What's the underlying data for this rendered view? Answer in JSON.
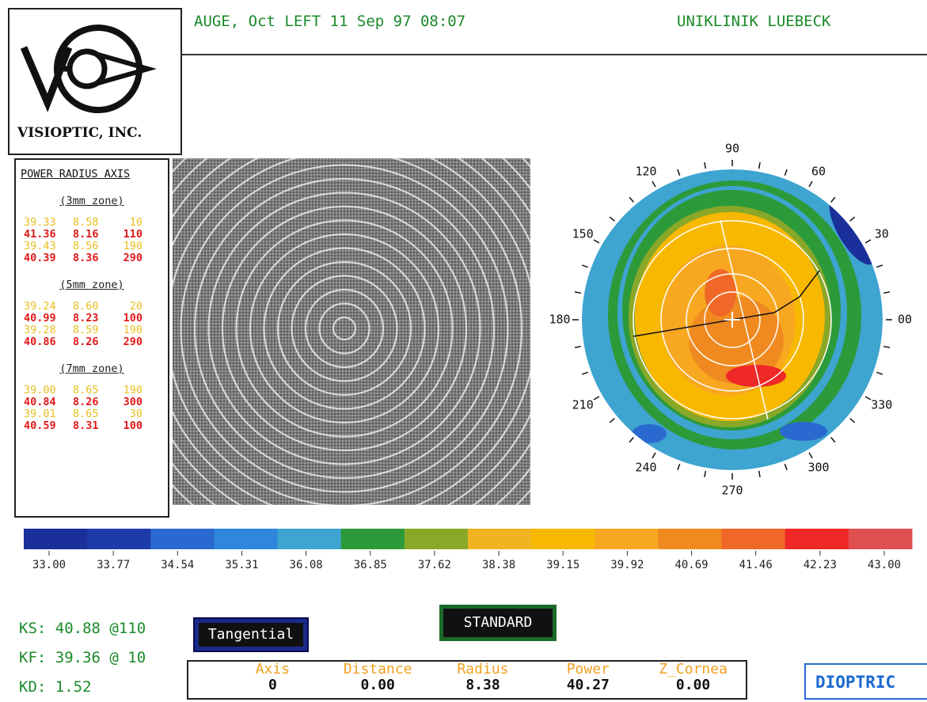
{
  "header": {
    "patient": "AUGE, Oct LEFT 11 Sep 97 08:07",
    "clinic": "UNIKLINIK LUEBECK"
  },
  "logo": {
    "company": "VISIOPTIC, INC."
  },
  "zones_panel": {
    "header": "POWER RADIUS AXIS",
    "zones": [
      {
        "title": "(3mm zone)",
        "rows": [
          [
            "39.33",
            "8.58",
            "10"
          ],
          [
            "41.36",
            "8.16",
            "110"
          ],
          [
            "39.43",
            "8.56",
            "190"
          ],
          [
            "40.39",
            "8.36",
            "290"
          ]
        ]
      },
      {
        "title": "(5mm zone)",
        "rows": [
          [
            "39.24",
            "8.60",
            "20"
          ],
          [
            "40.99",
            "8.23",
            "100"
          ],
          [
            "39.28",
            "8.59",
            "190"
          ],
          [
            "40.86",
            "8.26",
            "290"
          ]
        ]
      },
      {
        "title": "(7mm zone)",
        "rows": [
          [
            "39.00",
            "8.65",
            "190"
          ],
          [
            "40.84",
            "8.26",
            "300"
          ],
          [
            "39.01",
            "8.65",
            "30"
          ],
          [
            "40.59",
            "8.31",
            "100"
          ]
        ]
      }
    ]
  },
  "polar_labels": [
    "90",
    "60",
    "30",
    "00",
    "330",
    "300",
    "270",
    "240",
    "210",
    "180",
    "150",
    "120"
  ],
  "color_scale": {
    "labels": [
      "33.00",
      "33.77",
      "34.54",
      "35.31",
      "36.08",
      "36.85",
      "37.62",
      "38.38",
      "39.15",
      "39.92",
      "40.69",
      "41.46",
      "42.23",
      "43.00"
    ],
    "colors": [
      "#1a2f9a",
      "#1c3aa8",
      "#2a6ad0",
      "#2f86dc",
      "#3ea4d0",
      "#2d9a3a",
      "#8aa828",
      "#f0b420",
      "#f8b800",
      "#f8a820",
      "#f08a20",
      "#f06828",
      "#f02828",
      "#e05050"
    ]
  },
  "stats": {
    "ks": "KS: 40.88 @110",
    "kf": "KF: 39.36 @ 10",
    "kd": "KD: 1.52"
  },
  "buttons": {
    "mode": "Tangential",
    "standard": "STANDARD",
    "units": "DIOPTRIC"
  },
  "readout": {
    "headers": [
      "Axis",
      "Distance",
      "Radius",
      "Power",
      "Z_Cornea"
    ],
    "values": [
      "0",
      "0.00",
      "8.38",
      "40.27",
      "0.00"
    ]
  }
}
